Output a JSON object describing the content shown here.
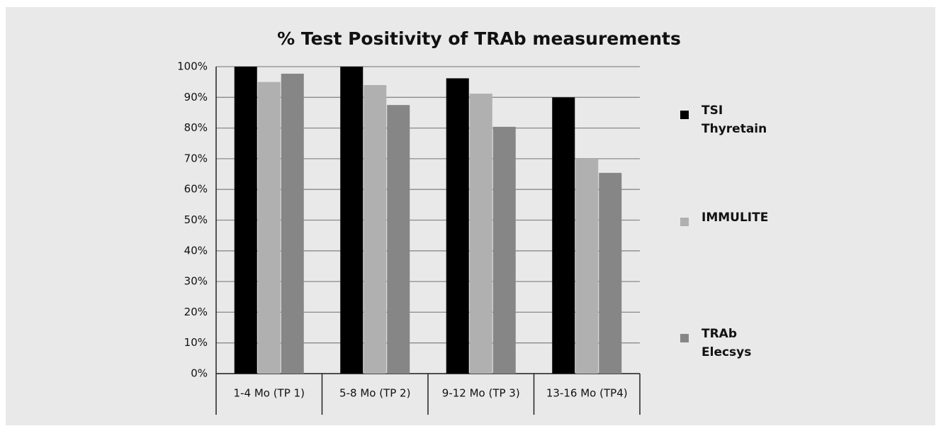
{
  "chart_data": {
    "type": "bar",
    "title": "% Test Positivity of TRAb measurements",
    "categories": [
      "1-4 Mo (TP 1)",
      "5-8 Mo (TP 2)",
      "9-12 Mo (TP 3)",
      "13-16 Mo (TP4)"
    ],
    "series": [
      {
        "name": "TSI Thyretain",
        "color": "#000000",
        "values": [
          100,
          100,
          96.2,
          90
        ]
      },
      {
        "name": "IMMULITE",
        "color": "#b0b0b0",
        "values": [
          95,
          94,
          91.2,
          70
        ]
      },
      {
        "name": "TRAb Elecsys",
        "color": "#868686",
        "values": [
          97.7,
          87.5,
          80.4,
          65.4
        ]
      }
    ],
    "ylim": [
      0,
      100
    ],
    "yticks": [
      {
        "value": 0,
        "label": "0%"
      },
      {
        "value": 10,
        "label": "10%"
      },
      {
        "value": 20,
        "label": "20%"
      },
      {
        "value": 30,
        "label": "30%"
      },
      {
        "value": 40,
        "label": "40%"
      },
      {
        "value": 50,
        "label": "50%"
      },
      {
        "value": 60,
        "label": "60%"
      },
      {
        "value": 70,
        "label": "70%"
      },
      {
        "value": 80,
        "label": "80%"
      },
      {
        "value": 90,
        "label": "90%"
      },
      {
        "value": 100,
        "label": "100%"
      }
    ],
    "grid": true,
    "legend_position": "right"
  }
}
